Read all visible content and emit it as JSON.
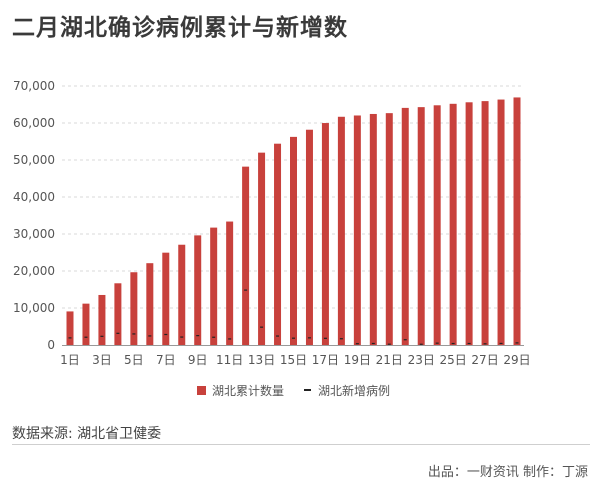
{
  "title": "二月湖北确诊病例累计与新增数",
  "source": "数据来源: 湖北省卫健委",
  "credit": "出品：一财资讯 制作：丁源",
  "colors": {
    "bar": "#c8413c",
    "marker": "#222222",
    "grid": "#d9d9d9",
    "axis": "#999999"
  },
  "chart_data": {
    "type": "bar",
    "title": "二月湖北确诊病例累计与新增数",
    "categories": [
      "1日",
      "2日",
      "3日",
      "4日",
      "5日",
      "6日",
      "7日",
      "8日",
      "9日",
      "10日",
      "11日",
      "12日",
      "13日",
      "14日",
      "15日",
      "16日",
      "17日",
      "18日",
      "19日",
      "20日",
      "21日",
      "22日",
      "23日",
      "24日",
      "25日",
      "26日",
      "27日",
      "28日",
      "29日"
    ],
    "tick_labels": [
      "1日",
      "3日",
      "5日",
      "7日",
      "9日",
      "11日",
      "13日",
      "15日",
      "17日",
      "19日",
      "21日",
      "23日",
      "25日",
      "27日",
      "29日"
    ],
    "y_ticks": [
      "0",
      "10,000",
      "20,000",
      "30,000",
      "40,000",
      "50,000",
      "60,000",
      "70,000"
    ],
    "ylim": [
      0,
      70000
    ],
    "grid": true,
    "legend_position": "bottom",
    "series": [
      {
        "name": "湖北累计数量",
        "type": "bar",
        "values": [
          9074,
          11177,
          13522,
          16678,
          19665,
          22112,
          24953,
          27100,
          29631,
          31728,
          33366,
          48206,
          51986,
          54406,
          56249,
          58182,
          59989,
          61682,
          62031,
          62442,
          62662,
          64084,
          64287,
          64786,
          65187,
          65596,
          65914,
          66337,
          66907
        ]
      },
      {
        "name": "湖北新增病例",
        "type": "line",
        "values": [
          1921,
          2103,
          2345,
          3156,
          2987,
          2447,
          2841,
          2147,
          2531,
          2097,
          1638,
          14840,
          4823,
          2420,
          1843,
          1933,
          1807,
          1693,
          349,
          411,
          220,
          1422,
          203,
          499,
          401,
          409,
          318,
          423,
          570
        ]
      }
    ]
  }
}
